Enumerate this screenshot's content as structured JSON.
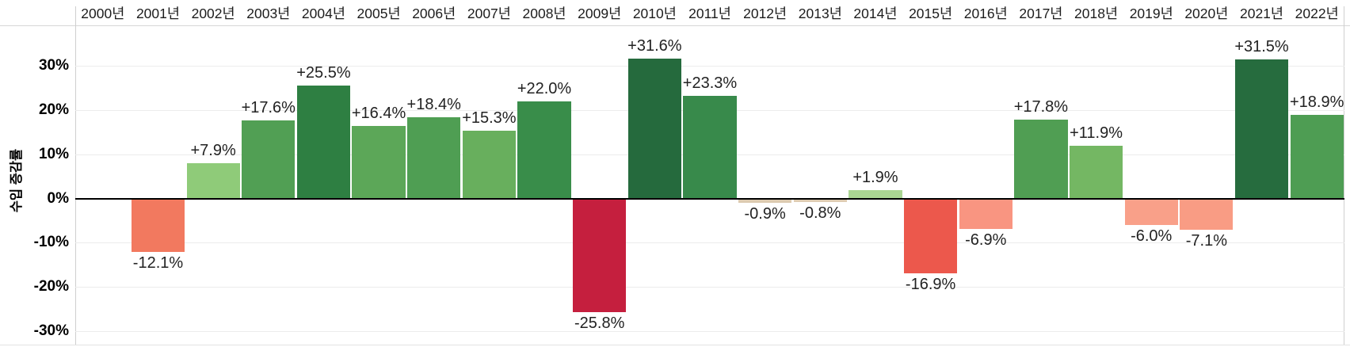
{
  "chart_data": {
    "type": "bar",
    "title": "",
    "ylabel": "수입 증감률",
    "categories": [
      "2000년",
      "2001년",
      "2002년",
      "2003년",
      "2004년",
      "2005년",
      "2006년",
      "2007년",
      "2008년",
      "2009년",
      "2010년",
      "2011년",
      "2012년",
      "2013년",
      "2014년",
      "2015년",
      "2016년",
      "2017년",
      "2018년",
      "2019년",
      "2020년",
      "2021년",
      "2022년"
    ],
    "values": [
      null,
      -12.1,
      7.9,
      17.6,
      25.5,
      16.4,
      18.4,
      15.3,
      22.0,
      -25.8,
      31.6,
      23.3,
      -0.9,
      -0.8,
      1.9,
      -16.9,
      -6.9,
      17.8,
      11.9,
      -6.0,
      -7.1,
      31.5,
      18.9
    ],
    "bar_labels": [
      "",
      "-12.1%",
      "+7.9%",
      "+17.6%",
      "+25.5%",
      "+16.4%",
      "+18.4%",
      "+15.3%",
      "+22.0%",
      "-25.8%",
      "+31.6%",
      "+23.3%",
      "-0.9%",
      "-0.8%",
      "+1.9%",
      "-16.9%",
      "-6.9%",
      "+17.8%",
      "+11.9%",
      "-6.0%",
      "-7.1%",
      "+31.5%",
      "+18.9%"
    ],
    "bar_colors": [
      null,
      "#f2795f",
      "#8fcb79",
      "#519f54",
      "#2e7f42",
      "#5ca758",
      "#4f9e53",
      "#68af5d",
      "#398d4a",
      "#c51f3e",
      "#256a3d",
      "#388a4b",
      "#dccab0",
      "#ddcbb1",
      "#abd693",
      "#ec584c",
      "#f99581",
      "#509e53",
      "#74b763",
      "#f9a089",
      "#f99c84",
      "#266c3e",
      "#4e9d53"
    ],
    "y_ticks": [
      {
        "label": "30%",
        "value": 30
      },
      {
        "label": "20%",
        "value": 20
      },
      {
        "label": "10%",
        "value": 10
      },
      {
        "label": "0%",
        "value": 0
      },
      {
        "label": "-10%",
        "value": -10
      },
      {
        "label": "-20%",
        "value": -20
      },
      {
        "label": "-30%",
        "value": -30
      }
    ],
    "ylim": [
      -33.3,
      39.2
    ],
    "grid": true,
    "legend_position": "none",
    "colors": {
      "zero_line": "#000000",
      "gridline": "#ececec",
      "border": "#d6d6d6",
      "text": "#1c1c1c",
      "value_label_text": "#222222",
      "background": "#ffffff"
    }
  }
}
